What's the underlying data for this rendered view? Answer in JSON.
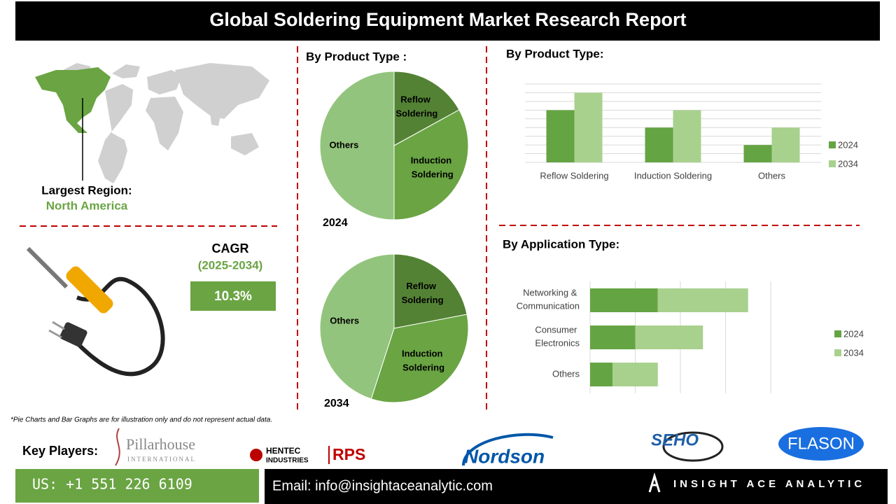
{
  "header": {
    "title": "Global Soldering Equipment Market Research Report"
  },
  "region": {
    "label": "Largest Region:",
    "value": "North America"
  },
  "cagr": {
    "label": "CAGR",
    "period": "(2025-2034)",
    "value": "10.3%"
  },
  "chart_data": [
    {
      "type": "pie",
      "title": "By Product Type :",
      "label": "2024",
      "categories": [
        "Reflow Soldering",
        "Induction Soldering",
        "Others"
      ],
      "values": [
        17,
        33,
        50
      ],
      "colors": [
        "#548235",
        "#6aa443",
        "#93c47d"
      ]
    },
    {
      "type": "pie",
      "label": "2034",
      "categories": [
        "Reflow Soldering",
        "Induction Soldering",
        "Others"
      ],
      "values": [
        22,
        33,
        45
      ],
      "colors": [
        "#548235",
        "#6aa443",
        "#93c47d"
      ]
    },
    {
      "type": "bar",
      "title": "By Product Type:",
      "categories": [
        "Reflow Soldering",
        "Induction Soldering",
        "Others"
      ],
      "series": [
        {
          "name": "2024",
          "color": "#65a443",
          "values": [
            6,
            4,
            2
          ]
        },
        {
          "name": "2034",
          "color": "#a9d18e",
          "values": [
            8,
            6,
            4
          ]
        }
      ],
      "ylim": [
        0,
        9
      ],
      "yticks": [
        0,
        1,
        2,
        3,
        4,
        5,
        6,
        7,
        8,
        9
      ],
      "grid": true,
      "legend": "right"
    },
    {
      "type": "hbar-stacked",
      "title": "By Application Type:",
      "categories": [
        "Networking & Communication",
        "Consumer Electronics",
        "Others"
      ],
      "series": [
        {
          "name": "2024",
          "color": "#65a443",
          "values": [
            1.5,
            1,
            0.5
          ]
        },
        {
          "name": "2034",
          "color": "#a9d18e",
          "values": [
            2,
            1.5,
            1
          ]
        }
      ],
      "xlim": [
        0,
        4
      ],
      "xticks": [
        0,
        1,
        2,
        3,
        4
      ],
      "grid": true,
      "legend": "right"
    }
  ],
  "note": "*Pie Charts and Bar Graphs are for illustration only and do not represent actual data.",
  "key_players": {
    "label": "Key Players:",
    "logos": [
      "Pillarhouse",
      "INTERNATIONAL",
      "HENTEC",
      "INDUSTRIES",
      "RPS",
      "Nordson",
      "SEHO",
      "FLASON"
    ]
  },
  "footer": {
    "phone": "US: +1 551 226 6109",
    "email": "Email: info@insightaceanalytic.com",
    "brand": "INSIGHT ACE ANALYTIC"
  }
}
